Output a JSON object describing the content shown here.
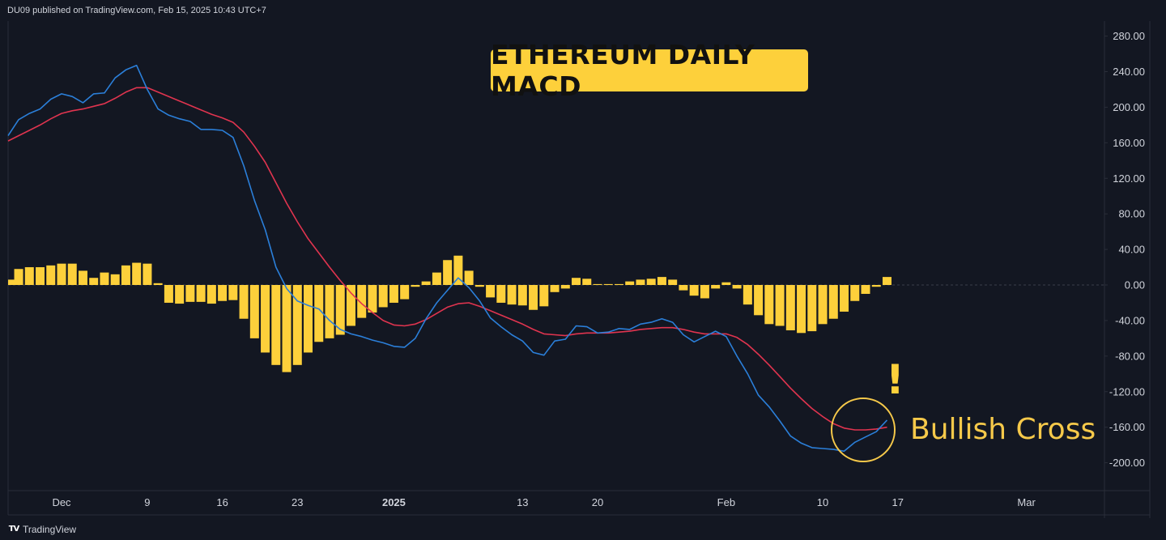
{
  "header": {
    "text": "DU09 published on TradingView.com, Feb 15, 2025 10:43 UTC+7"
  },
  "footer": {
    "logo": "TV",
    "brand": "TradingView"
  },
  "title": "ETHEREUM DAILY MACD",
  "annotation": {
    "text": "Bullish Cross",
    "mark": "!"
  },
  "colors": {
    "background": "#131722",
    "macd_line": "#2b7fd9",
    "signal_line": "#e0344f",
    "histogram": "#fdd03b",
    "badge": "#fdd03b",
    "annotation": "#f6c94a",
    "axis_text": "#d1d4dc",
    "border": "#2a2e39"
  },
  "chart_data": {
    "type": "line",
    "y_range": [
      -230,
      300
    ],
    "y_ticks": [
      "280.00",
      "240.00",
      "200.00",
      "160.00",
      "120.00",
      "80.00",
      "40.00",
      "0.00",
      "-40.00",
      "-80.00",
      "-120.00",
      "-160.00",
      "-200.00"
    ],
    "y_tick_values": [
      280,
      240,
      200,
      160,
      120,
      80,
      40,
      0,
      -40,
      -80,
      -120,
      -160,
      -200
    ],
    "x_tick_labels": [
      {
        "label": "Dec",
        "day": 0,
        "bold": false
      },
      {
        "label": "9",
        "day": 8,
        "bold": false
      },
      {
        "label": "16",
        "day": 15,
        "bold": false
      },
      {
        "label": "23",
        "day": 22,
        "bold": false
      },
      {
        "label": "2025",
        "day": 31,
        "bold": true
      },
      {
        "label": "13",
        "day": 43,
        "bold": false
      },
      {
        "label": "20",
        "day": 50,
        "bold": false
      },
      {
        "label": "Feb",
        "day": 62,
        "bold": false
      },
      {
        "label": "10",
        "day": 71,
        "bold": false
      },
      {
        "label": "17",
        "day": 78,
        "bold": false
      },
      {
        "label": "Mar",
        "day": 90,
        "bold": false
      }
    ],
    "x_domain": [
      -5,
      95
    ],
    "series": [
      {
        "key": "macd",
        "values": [
          [
            -5,
            168
          ],
          [
            -4,
            186
          ],
          [
            -3,
            193
          ],
          [
            -2,
            198
          ],
          [
            -1,
            209
          ],
          [
            0,
            215
          ],
          [
            1,
            212
          ],
          [
            2,
            205
          ],
          [
            3,
            215
          ],
          [
            4,
            216
          ],
          [
            5,
            233
          ],
          [
            6,
            242
          ],
          [
            7,
            247
          ],
          [
            8,
            220
          ],
          [
            9,
            198
          ],
          [
            10,
            191
          ],
          [
            11,
            187
          ],
          [
            12,
            184
          ],
          [
            13,
            175
          ],
          [
            14,
            175
          ],
          [
            15,
            174
          ],
          [
            16,
            166
          ],
          [
            17,
            134
          ],
          [
            18,
            95
          ],
          [
            19,
            62
          ],
          [
            20,
            20
          ],
          [
            21,
            -4
          ],
          [
            22,
            -18
          ],
          [
            23,
            -23
          ],
          [
            24,
            -27
          ],
          [
            25,
            -40
          ],
          [
            26,
            -50
          ],
          [
            27,
            -55
          ],
          [
            28,
            -58
          ],
          [
            29,
            -62
          ],
          [
            30,
            -65
          ],
          [
            31,
            -69
          ],
          [
            32,
            -70
          ],
          [
            33,
            -60
          ],
          [
            34,
            -38
          ],
          [
            35,
            -20
          ],
          [
            36,
            -6
          ],
          [
            37,
            8
          ],
          [
            38,
            -3
          ],
          [
            39,
            -18
          ],
          [
            40,
            -37
          ],
          [
            41,
            -47
          ],
          [
            42,
            -56
          ],
          [
            43,
            -63
          ],
          [
            44,
            -76
          ],
          [
            45,
            -79
          ],
          [
            46,
            -63
          ],
          [
            47,
            -61
          ],
          [
            48,
            -46
          ],
          [
            49,
            -47
          ],
          [
            50,
            -54
          ],
          [
            51,
            -53
          ],
          [
            52,
            -49
          ],
          [
            53,
            -50
          ],
          [
            54,
            -44
          ],
          [
            55,
            -42
          ],
          [
            56,
            -38
          ],
          [
            57,
            -42
          ],
          [
            58,
            -56
          ],
          [
            59,
            -64
          ],
          [
            60,
            -58
          ],
          [
            61,
            -52
          ],
          [
            62,
            -58
          ],
          [
            63,
            -80
          ],
          [
            64,
            -100
          ],
          [
            65,
            -124
          ],
          [
            66,
            -137
          ],
          [
            67,
            -153
          ],
          [
            68,
            -170
          ],
          [
            69,
            -178
          ],
          [
            70,
            -183
          ],
          [
            71,
            -184
          ],
          [
            72,
            -185
          ],
          [
            73,
            -187
          ],
          [
            74,
            -177
          ],
          [
            75,
            -171
          ],
          [
            76,
            -165
          ],
          [
            77,
            -152
          ]
        ]
      },
      {
        "key": "signal",
        "values": [
          [
            -5,
            162
          ],
          [
            -4,
            168
          ],
          [
            -3,
            174
          ],
          [
            -2,
            180
          ],
          [
            -1,
            187
          ],
          [
            0,
            193
          ],
          [
            1,
            196
          ],
          [
            2,
            198
          ],
          [
            3,
            201
          ],
          [
            4,
            204
          ],
          [
            5,
            210
          ],
          [
            6,
            217
          ],
          [
            7,
            222
          ],
          [
            8,
            222
          ],
          [
            9,
            217
          ],
          [
            10,
            212
          ],
          [
            11,
            207
          ],
          [
            12,
            202
          ],
          [
            13,
            197
          ],
          [
            14,
            192
          ],
          [
            15,
            188
          ],
          [
            16,
            183
          ],
          [
            17,
            172
          ],
          [
            18,
            156
          ],
          [
            19,
            138
          ],
          [
            20,
            115
          ],
          [
            21,
            92
          ],
          [
            22,
            71
          ],
          [
            23,
            52
          ],
          [
            24,
            36
          ],
          [
            25,
            20
          ],
          [
            26,
            5
          ],
          [
            27,
            -9
          ],
          [
            28,
            -21
          ],
          [
            29,
            -31
          ],
          [
            30,
            -40
          ],
          [
            31,
            -45
          ],
          [
            32,
            -46
          ],
          [
            33,
            -44
          ],
          [
            34,
            -39
          ],
          [
            35,
            -32
          ],
          [
            36,
            -25
          ],
          [
            37,
            -21
          ],
          [
            38,
            -20
          ],
          [
            39,
            -24
          ],
          [
            40,
            -29
          ],
          [
            41,
            -34
          ],
          [
            42,
            -39
          ],
          [
            43,
            -44
          ],
          [
            44,
            -50
          ],
          [
            45,
            -55
          ],
          [
            46,
            -56
          ],
          [
            47,
            -57
          ],
          [
            48,
            -55
          ],
          [
            49,
            -54
          ],
          [
            50,
            -54
          ],
          [
            51,
            -54
          ],
          [
            52,
            -53
          ],
          [
            53,
            -52
          ],
          [
            54,
            -50
          ],
          [
            55,
            -49
          ],
          [
            56,
            -48
          ],
          [
            57,
            -48
          ],
          [
            58,
            -50
          ],
          [
            59,
            -53
          ],
          [
            60,
            -55
          ],
          [
            61,
            -55
          ],
          [
            62,
            -55
          ],
          [
            63,
            -59
          ],
          [
            64,
            -67
          ],
          [
            65,
            -78
          ],
          [
            66,
            -90
          ],
          [
            67,
            -103
          ],
          [
            68,
            -116
          ],
          [
            69,
            -128
          ],
          [
            70,
            -139
          ],
          [
            71,
            -148
          ],
          [
            72,
            -156
          ],
          [
            73,
            -161
          ],
          [
            74,
            -163
          ],
          [
            75,
            -163
          ],
          [
            76,
            -162
          ],
          [
            77,
            -160
          ]
        ]
      },
      {
        "key": "histogram",
        "values": [
          [
            -5,
            6
          ],
          [
            -4,
            18
          ],
          [
            -3,
            20
          ],
          [
            -2,
            20
          ],
          [
            -1,
            22
          ],
          [
            0,
            24
          ],
          [
            1,
            24
          ],
          [
            2,
            16
          ],
          [
            3,
            8
          ],
          [
            4,
            14
          ],
          [
            5,
            12
          ],
          [
            6,
            22
          ],
          [
            7,
            25
          ],
          [
            8,
            24
          ],
          [
            9,
            2
          ],
          [
            10,
            -20
          ],
          [
            11,
            -21
          ],
          [
            12,
            -19
          ],
          [
            13,
            -19
          ],
          [
            14,
            -21
          ],
          [
            15,
            -18
          ],
          [
            16,
            -17
          ],
          [
            17,
            -38
          ],
          [
            18,
            -60
          ],
          [
            19,
            -76
          ],
          [
            20,
            -90
          ],
          [
            21,
            -98
          ],
          [
            22,
            -90
          ],
          [
            23,
            -76
          ],
          [
            24,
            -64
          ],
          [
            25,
            -60
          ],
          [
            26,
            -56
          ],
          [
            27,
            -46
          ],
          [
            28,
            -37
          ],
          [
            29,
            -31
          ],
          [
            30,
            -25
          ],
          [
            31,
            -20
          ],
          [
            32,
            -16
          ],
          [
            33,
            -2
          ],
          [
            34,
            4
          ],
          [
            35,
            14
          ],
          [
            36,
            28
          ],
          [
            37,
            33
          ],
          [
            38,
            16
          ],
          [
            39,
            -2
          ],
          [
            40,
            -14
          ],
          [
            41,
            -20
          ],
          [
            42,
            -22
          ],
          [
            43,
            -23
          ],
          [
            44,
            -28
          ],
          [
            45,
            -24
          ],
          [
            46,
            -8
          ],
          [
            47,
            -4
          ],
          [
            48,
            8
          ],
          [
            49,
            7
          ],
          [
            50,
            1
          ],
          [
            51,
            1
          ],
          [
            52,
            1
          ],
          [
            53,
            4
          ],
          [
            54,
            6
          ],
          [
            55,
            7
          ],
          [
            56,
            9
          ],
          [
            57,
            6
          ],
          [
            58,
            -6
          ],
          [
            59,
            -12
          ],
          [
            60,
            -15
          ],
          [
            61,
            -4
          ],
          [
            62,
            3
          ],
          [
            63,
            -4
          ],
          [
            64,
            -22
          ],
          [
            65,
            -34
          ],
          [
            66,
            -44
          ],
          [
            67,
            -46
          ],
          [
            68,
            -51
          ],
          [
            69,
            -54
          ],
          [
            70,
            -52
          ],
          [
            71,
            -44
          ],
          [
            72,
            -38
          ],
          [
            73,
            -30
          ],
          [
            74,
            -18
          ],
          [
            75,
            -10
          ],
          [
            76,
            -2
          ],
          [
            77,
            9
          ]
        ]
      }
    ]
  }
}
